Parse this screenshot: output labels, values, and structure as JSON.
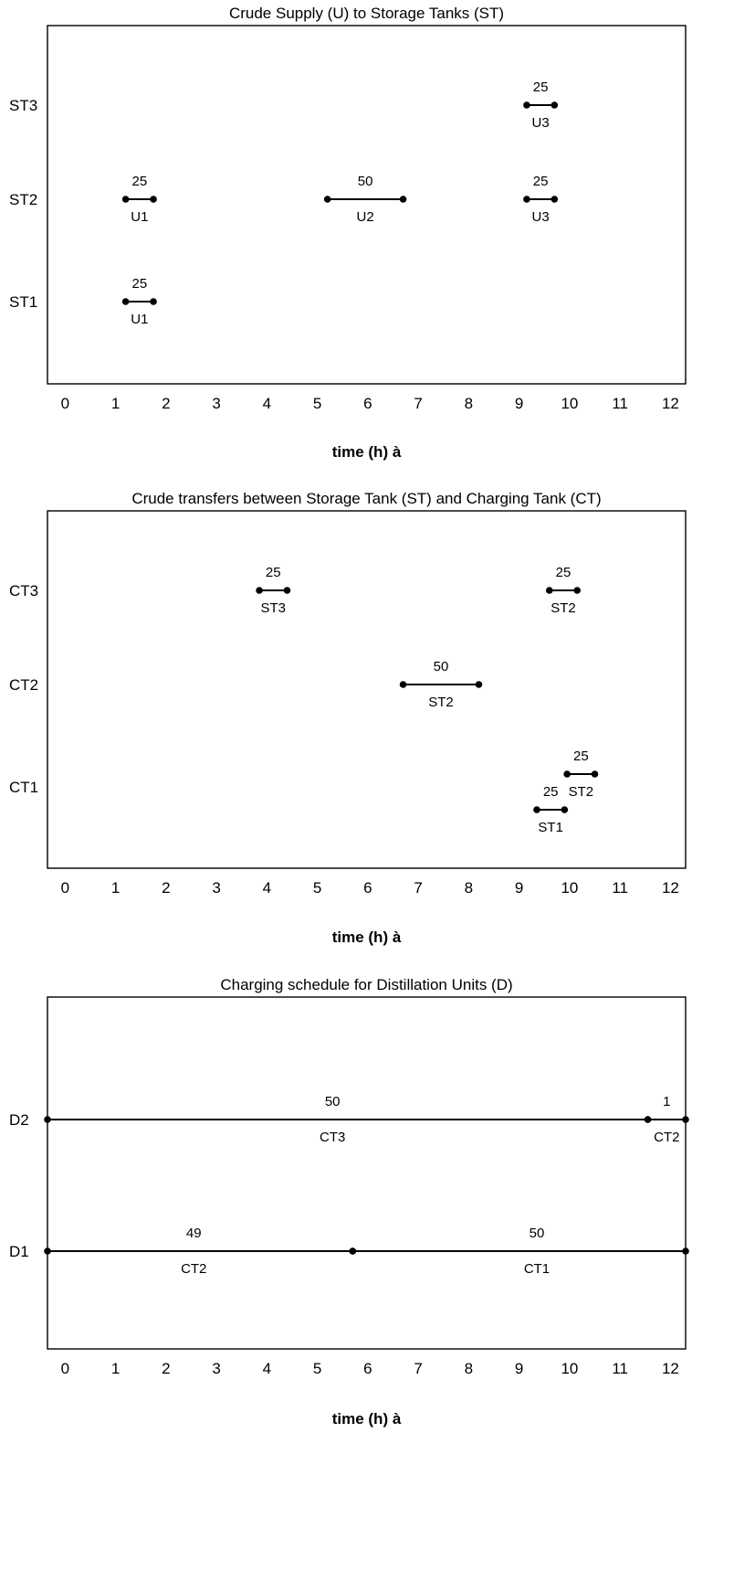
{
  "chart_data": [
    {
      "type": "gantt",
      "title": "Crude Supply (U) to Storage Tanks (ST)",
      "xlabel": "time (h) à",
      "xticks": [
        "0",
        "1",
        "2",
        "3",
        "4",
        "5",
        "6",
        "7",
        "8",
        "9",
        "10",
        "11",
        "12"
      ],
      "xlim": [
        -0.35,
        12.3
      ],
      "rows": [
        "ST3",
        "ST2",
        "ST1"
      ],
      "bars": [
        {
          "row": "ST3",
          "start": 9.15,
          "end": 9.7,
          "value": "25",
          "source": "U3"
        },
        {
          "row": "ST2",
          "start": 1.2,
          "end": 1.75,
          "value": "25",
          "source": "U1"
        },
        {
          "row": "ST2",
          "start": 5.2,
          "end": 6.7,
          "value": "50",
          "source": "U2"
        },
        {
          "row": "ST2",
          "start": 9.15,
          "end": 9.7,
          "value": "25",
          "source": "U3"
        },
        {
          "row": "ST1",
          "start": 1.2,
          "end": 1.75,
          "value": "25",
          "source": "U1"
        }
      ]
    },
    {
      "type": "gantt",
      "title": "Crude transfers between Storage Tank (ST) and Charging Tank (CT)",
      "xlabel": "time (h) à",
      "xticks": [
        "0",
        "1",
        "2",
        "3",
        "4",
        "5",
        "6",
        "7",
        "8",
        "9",
        "10",
        "11",
        "12"
      ],
      "xlim": [
        -0.35,
        12.3
      ],
      "rows": [
        "CT3",
        "CT2",
        "CT1"
      ],
      "bars": [
        {
          "row": "CT3",
          "start": 3.85,
          "end": 4.4,
          "value": "25",
          "source": "ST3"
        },
        {
          "row": "CT3",
          "start": 9.6,
          "end": 10.15,
          "value": "25",
          "source": "ST2"
        },
        {
          "row": "CT2",
          "start": 6.7,
          "end": 8.2,
          "value": "50",
          "source": "ST2"
        },
        {
          "row": "CT1",
          "start": 9.95,
          "end": 10.5,
          "value": "25",
          "source": "ST2",
          "offset": 1
        },
        {
          "row": "CT1",
          "start": 9.35,
          "end": 9.9,
          "value": "25",
          "source": "ST1",
          "offset": -1
        }
      ]
    },
    {
      "type": "gantt",
      "title": "Charging schedule for Distillation Units (D)",
      "xlabel": "time (h) à",
      "xticks": [
        "0",
        "1",
        "2",
        "3",
        "4",
        "5",
        "6",
        "7",
        "8",
        "9",
        "10",
        "11",
        "12"
      ],
      "xlim": [
        -0.35,
        12.3
      ],
      "rows": [
        "D2",
        "D1"
      ],
      "bars": [
        {
          "row": "D2",
          "start": -0.35,
          "end": 11.55,
          "value": "50",
          "source": "CT3",
          "valueAt": 5.3,
          "showLeftDot": true
        },
        {
          "row": "D2",
          "start": 11.55,
          "end": 12.3,
          "value": "1",
          "source": "CT2"
        },
        {
          "row": "D1",
          "start": -0.35,
          "end": 5.7,
          "value": "49",
          "source": "CT2",
          "valueAt": 2.55
        },
        {
          "row": "D1",
          "start": 5.7,
          "end": 12.3,
          "value": "50",
          "source": "CT1",
          "valueAt": 9.35
        }
      ]
    }
  ]
}
